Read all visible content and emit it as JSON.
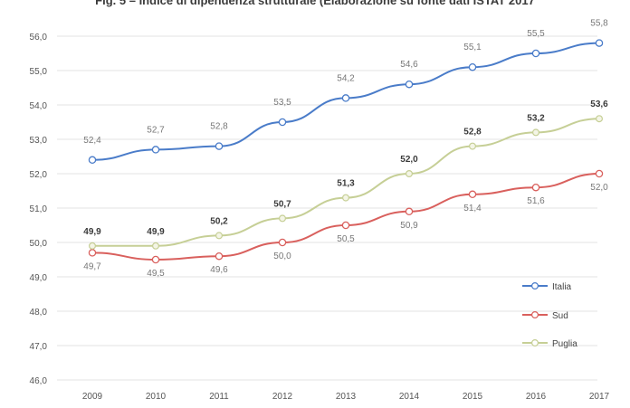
{
  "chart_data": {
    "type": "line",
    "title": "Fig. 5 – Indice di dipendenza strutturale (Elaborazione su fonte dati ISTAT 2017",
    "categories": [
      "2009",
      "2010",
      "2011",
      "2012",
      "2013",
      "2014",
      "2015",
      "2016",
      "2017"
    ],
    "ylim": [
      46.0,
      56.0
    ],
    "yticks": [
      "46,0",
      "47,0",
      "48,0",
      "49,0",
      "50,0",
      "51,0",
      "52,0",
      "53,0",
      "54,0",
      "55,0",
      "56,0"
    ],
    "grid": true,
    "legend_position": "right",
    "series": [
      {
        "name": "Italia",
        "color": "#4a7cc9",
        "values": [
          52.4,
          52.7,
          52.8,
          53.5,
          54.2,
          54.6,
          55.1,
          55.5,
          55.8
        ],
        "labels": [
          "52,4",
          "52,7",
          "52,8",
          "53,5",
          "54,2",
          "54,6",
          "55,1",
          "55,5",
          "55,8"
        ]
      },
      {
        "name": "Sud",
        "color": "#d9605d",
        "values": [
          49.7,
          49.5,
          49.6,
          50.0,
          50.5,
          50.9,
          51.4,
          51.6,
          52.0
        ],
        "labels": [
          "49,7",
          "49,5",
          "49,6",
          "50,0",
          "50,5",
          "50,9",
          "51,4",
          "51,6",
          "52,0"
        ]
      },
      {
        "name": "Puglia",
        "color": "#c6cf96",
        "values": [
          49.9,
          49.9,
          50.2,
          50.7,
          51.3,
          52.0,
          52.8,
          53.2,
          53.6
        ],
        "labels": [
          "49,9",
          "49,9",
          "50,2",
          "50,7",
          "51,3",
          "52,0",
          "52,8",
          "53,2",
          "53,6"
        ]
      }
    ]
  }
}
